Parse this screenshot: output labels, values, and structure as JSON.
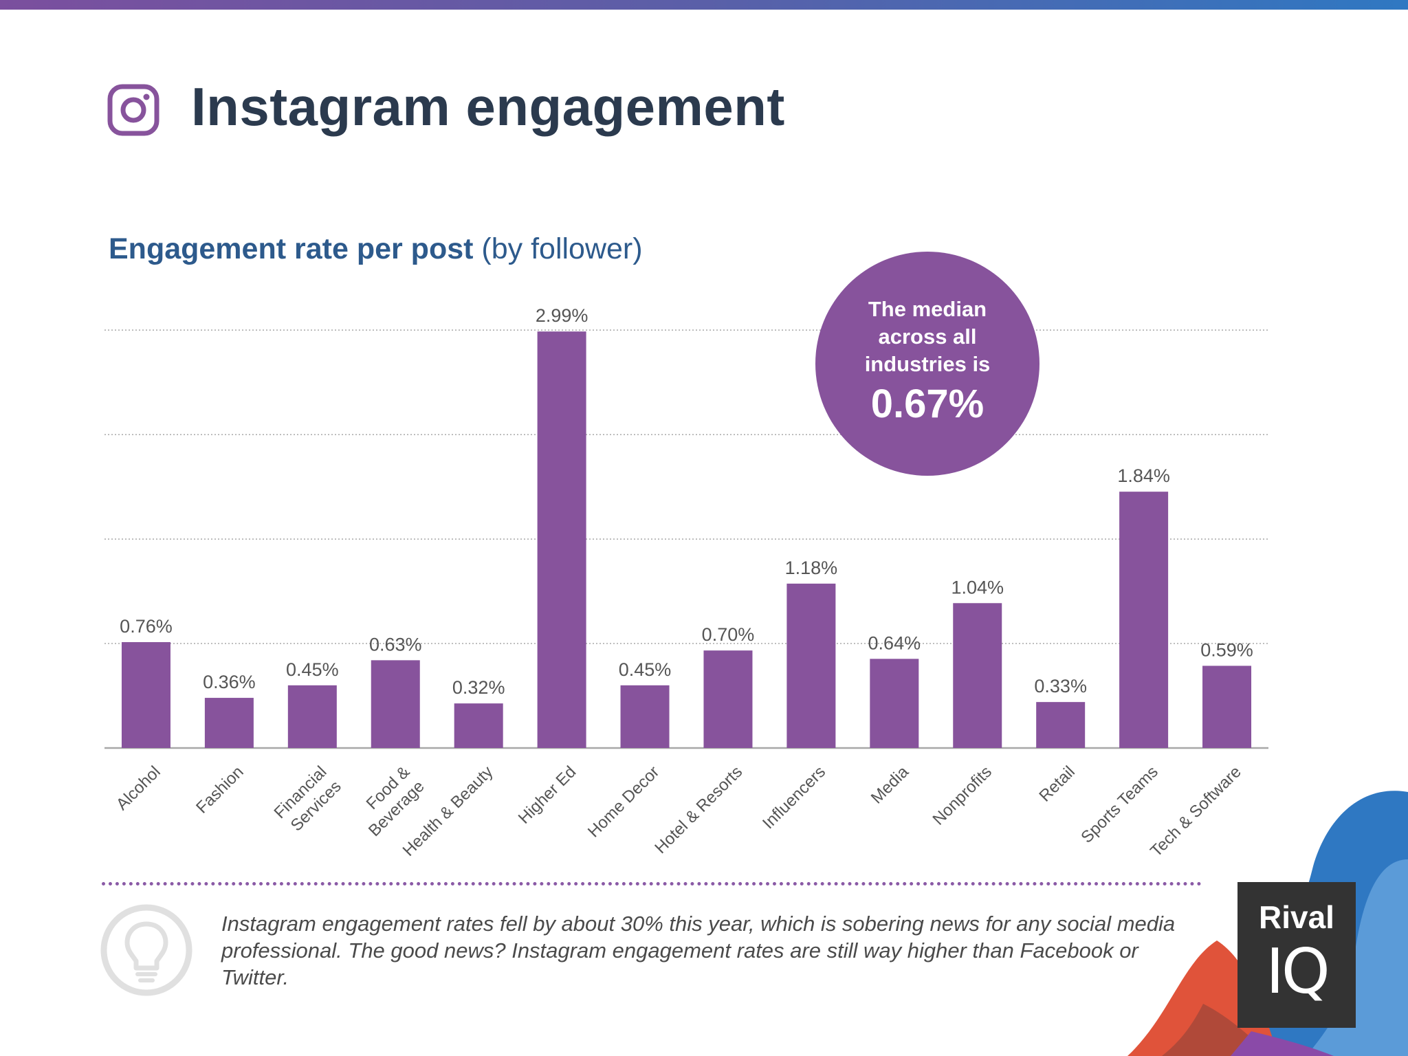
{
  "header": {
    "title": "Instagram engagement"
  },
  "chart_data": {
    "type": "bar",
    "title_bold": "Engagement rate per post",
    "title_light": "(by follower)",
    "categories": [
      "Alcohol",
      "Fashion",
      "Financial Services",
      "Food & Beverage",
      "Health & Beauty",
      "Higher Ed",
      "Home Decor",
      "Hotel & Resorts",
      "Influencers",
      "Media",
      "Nonprofits",
      "Retail",
      "Sports Teams",
      "Tech & Software"
    ],
    "category_lines": [
      [
        "Alcohol"
      ],
      [
        "Fashion"
      ],
      [
        "Financial",
        "Services"
      ],
      [
        "Food &",
        "Beverage"
      ],
      [
        "Health & Beauty"
      ],
      [
        "Higher Ed"
      ],
      [
        "Home Decor"
      ],
      [
        "Hotel & Resorts"
      ],
      [
        "Influencers"
      ],
      [
        "Media"
      ],
      [
        "Nonprofits"
      ],
      [
        "Retail"
      ],
      [
        "Sports Teams"
      ],
      [
        "Tech & Software"
      ]
    ],
    "values": [
      0.76,
      0.36,
      0.45,
      0.63,
      0.32,
      2.99,
      0.45,
      0.7,
      1.18,
      0.64,
      1.04,
      0.33,
      1.84,
      0.59
    ],
    "labels": [
      "0.76%",
      "0.36%",
      "0.45%",
      "0.63%",
      "0.32%",
      "2.99%",
      "0.45%",
      "0.70%",
      "1.18%",
      "0.64%",
      "1.04%",
      "0.33%",
      "1.84%",
      "0.59%"
    ],
    "ylim": [
      0,
      3.05
    ],
    "gridlines": [
      0.75,
      1.5,
      2.25,
      3.0
    ],
    "bar_color": "#87539c",
    "xlabel": "",
    "ylabel": ""
  },
  "median": {
    "text_lines": [
      "The median",
      "across all",
      "industries is"
    ],
    "value": "0.67%"
  },
  "note": {
    "text": "Instagram engagement rates fell by about 30% this year, which is sobering news for any social media professional. The good news? Instagram engagement rates are still way higher than Facebook or Twitter."
  },
  "logo": {
    "line1": "Rival",
    "line2": "IQ"
  },
  "colors": {
    "accent": "#87539c",
    "title": "#2b3a4e",
    "subtitle": "#2d5a8c"
  }
}
